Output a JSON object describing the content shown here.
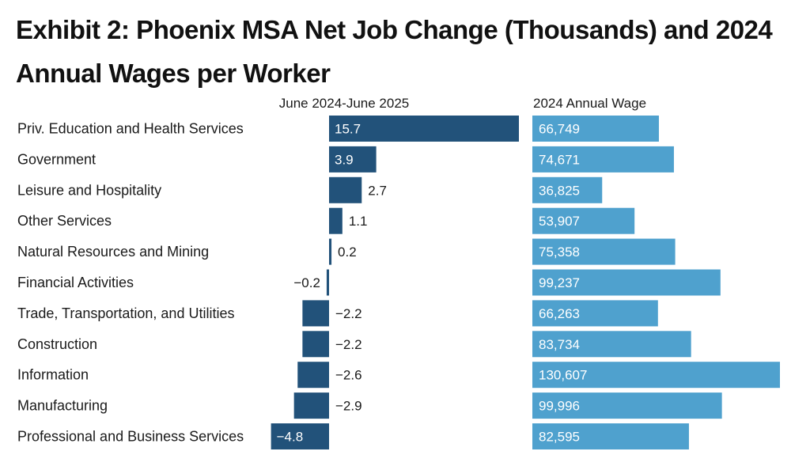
{
  "title": "Exhibit 2: Phoenix MSA Net Job Change (Thousands) and 2024 Annual Wages per Worker",
  "chart_data": [
    {
      "type": "bar",
      "orientation": "horizontal",
      "title": "June 2024-June 2025",
      "categories": [
        "Priv. Education and Health Services",
        "Government",
        "Leisure and Hospitality",
        "Other Services",
        "Natural Resources and Mining",
        "Financial Activities",
        "Trade, Transportation, and Utilities",
        "Construction",
        "Information",
        "Manufacturing",
        "Professional and Business Services"
      ],
      "values": [
        15.7,
        3.9,
        2.7,
        1.1,
        0.2,
        -0.2,
        -2.2,
        -2.2,
        -2.6,
        -2.9,
        -4.8
      ],
      "labels": [
        "15.7",
        "3.9",
        "2.7",
        "1.1",
        "0.2",
        "−0.2",
        "−2.2",
        "−2.2",
        "−2.6",
        "−2.9",
        "−4.8"
      ],
      "color": "#22527a",
      "xlim": [
        -4.8,
        15.7
      ]
    },
    {
      "type": "bar",
      "orientation": "horizontal",
      "title": "2024 Annual Wage",
      "categories": [
        "Priv. Education and Health Services",
        "Government",
        "Leisure and Hospitality",
        "Other Services",
        "Natural Resources and Mining",
        "Financial Activities",
        "Trade, Transportation, and Utilities",
        "Construction",
        "Information",
        "Manufacturing",
        "Professional and Business Services"
      ],
      "values": [
        66749,
        74671,
        36825,
        53907,
        75358,
        99237,
        66263,
        83734,
        130607,
        99996,
        82595
      ],
      "labels": [
        "66,749",
        "74,671",
        "36,825",
        "53,907",
        "75,358",
        "99,237",
        "66,263",
        "83,734",
        "130,607",
        "99,996",
        "82,595"
      ],
      "color": "#4fa1ce",
      "xlim": [
        0,
        130607
      ]
    }
  ]
}
